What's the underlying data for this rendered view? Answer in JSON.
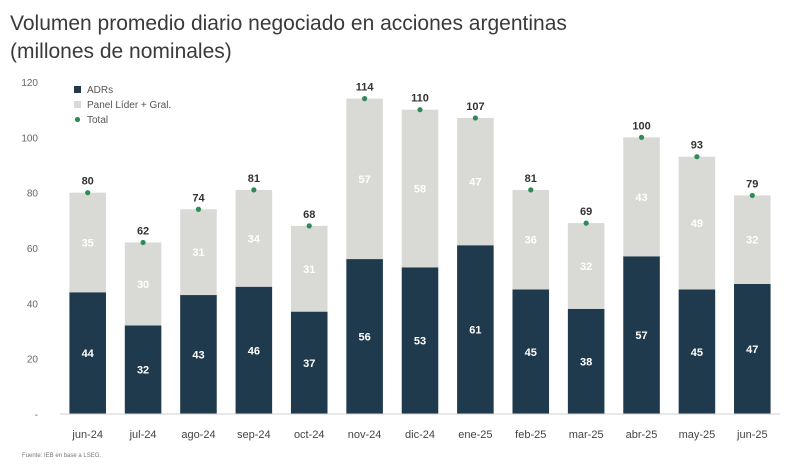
{
  "title_line1": "Volumen promedio diario negociado en acciones argentinas",
  "title_line2": "(millones de nominales)",
  "source": "Fuente: IEB en base a LSEG.",
  "chart_data": {
    "type": "bar",
    "stacked": true,
    "categories": [
      "jun-24",
      "jul-24",
      "ago-24",
      "sep-24",
      "oct-24",
      "nov-24",
      "dic-24",
      "ene-25",
      "feb-25",
      "mar-25",
      "abr-25",
      "may-25",
      "jun-25"
    ],
    "series": [
      {
        "name": "ADRs",
        "color": "#1f3a4d",
        "values": [
          44,
          32,
          43,
          46,
          37,
          56,
          53,
          61,
          45,
          38,
          57,
          45,
          47
        ]
      },
      {
        "name": "Panel Líder + Gral.",
        "color": "#d9d9d6",
        "values": [
          35,
          30,
          31,
          34,
          31,
          57,
          58,
          47,
          36,
          32,
          43,
          49,
          32
        ]
      }
    ],
    "totals": {
      "name": "Total",
      "color": "#2e8b57",
      "values": [
        80,
        62,
        74,
        81,
        68,
        114,
        110,
        107,
        81,
        69,
        100,
        93,
        79
      ]
    },
    "y_ticks": [
      "-",
      "20",
      "40",
      "60",
      "80",
      "100",
      "120"
    ],
    "ylim": [
      0,
      120
    ],
    "legend_position": "top-left"
  }
}
